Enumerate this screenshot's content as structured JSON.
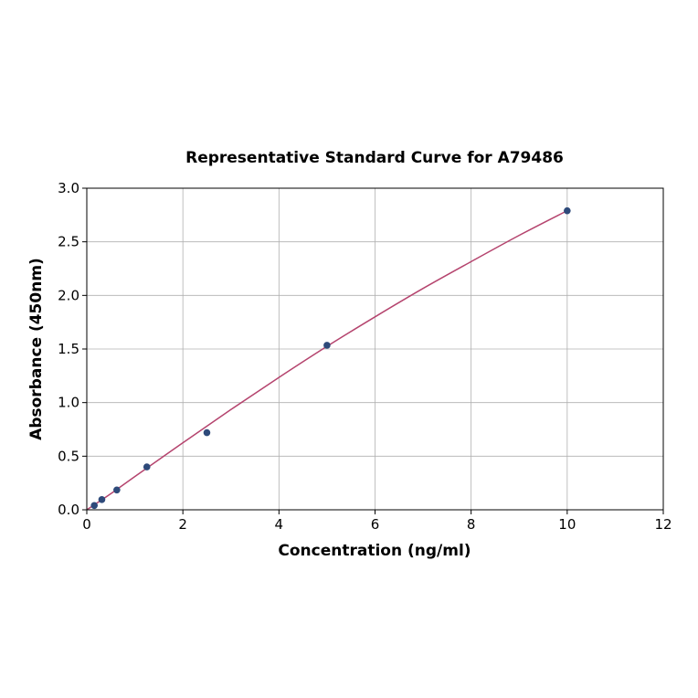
{
  "chart_data": {
    "type": "scatter",
    "title": "Representative Standard Curve for A79486",
    "xlabel": "Concentration (ng/ml)",
    "ylabel": "Absorbance (450nm)",
    "xlim": [
      0,
      12
    ],
    "ylim": [
      0,
      3.0
    ],
    "xticks": [
      "0",
      "2",
      "4",
      "6",
      "8",
      "10",
      "12"
    ],
    "yticks": [
      "0.0",
      "0.5",
      "1.0",
      "1.5",
      "2.0",
      "2.5",
      "3.0"
    ],
    "grid": true,
    "series": [
      {
        "kind": "points",
        "x": [
          0.156,
          0.313,
          0.625,
          1.25,
          2.5,
          5,
          10
        ],
        "y": [
          0.04,
          0.095,
          0.185,
          0.4,
          0.72,
          1.535,
          2.79
        ]
      },
      {
        "kind": "fitted-curve",
        "x": [
          0,
          0.5,
          1,
          2,
          3,
          4,
          5,
          6,
          7,
          8,
          9,
          10
        ],
        "y": [
          0.0,
          0.15,
          0.31,
          0.625,
          0.935,
          1.235,
          1.525,
          1.8,
          2.065,
          2.315,
          2.56,
          2.79
        ]
      }
    ],
    "colors": {
      "points": "#2e4a7a",
      "curve": "#b5446e"
    }
  }
}
